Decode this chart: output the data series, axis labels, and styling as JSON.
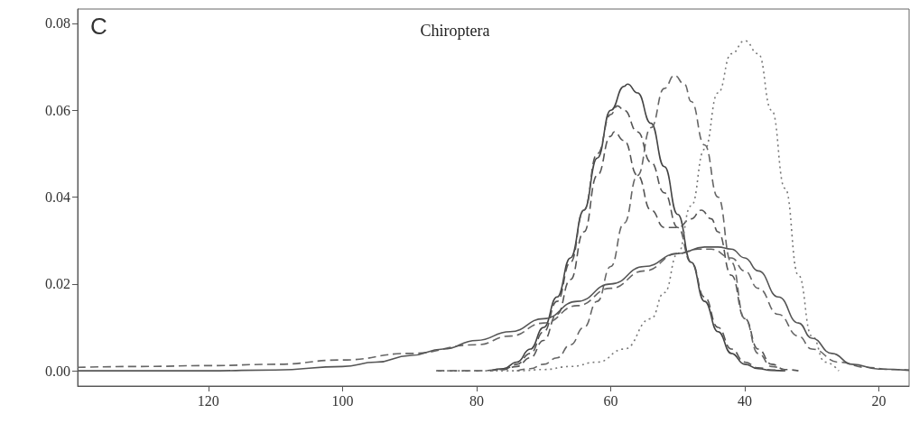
{
  "chart_data": {
    "type": "line",
    "title": "Chiroptera",
    "annotations": [
      "C"
    ],
    "xlim": [
      139.5,
      15.5
    ],
    "xticks": [
      120,
      100,
      80,
      60,
      40,
      20
    ],
    "ylim": [
      -0.0035,
      0.0833
    ],
    "yticks": [
      {
        "value": 0,
        "label": "0.00"
      },
      0.02,
      0.04,
      0.06,
      0.08
    ],
    "marker": "none",
    "series": [
      {
        "color": "#444444",
        "line_style": "solid",
        "x": [
          78,
          76,
          74,
          72,
          70,
          68,
          66,
          64,
          62,
          60,
          58,
          57.5,
          56,
          54,
          52,
          50,
          48,
          46,
          44,
          42,
          40,
          38,
          36,
          34
        ],
        "values": [
          0,
          0.0005,
          0.002,
          0.005,
          0.01,
          0.017,
          0.026,
          0.037,
          0.049,
          0.06,
          0.0655,
          0.066,
          0.064,
          0.057,
          0.047,
          0.036,
          0.025,
          0.016,
          0.009,
          0.004,
          0.0015,
          0.0005,
          0.0001,
          0
        ]
      },
      {
        "color": "#555555",
        "line_style": "dashed",
        "x": [
          78,
          76,
          74,
          72,
          70,
          68,
          66,
          64,
          62,
          60,
          59,
          58,
          56,
          54,
          52,
          50,
          48,
          46,
          44,
          42,
          40,
          38,
          36,
          34
        ],
        "values": [
          0,
          0.0003,
          0.0015,
          0.004,
          0.009,
          0.016,
          0.025,
          0.037,
          0.05,
          0.059,
          0.061,
          0.06,
          0.055,
          0.048,
          0.041,
          0.033,
          0.025,
          0.017,
          0.01,
          0.005,
          0.002,
          0.0007,
          0.0002,
          0
        ]
      },
      {
        "color": "#555555",
        "line_style": "dashed",
        "x": [
          86,
          80,
          76,
          74,
          72,
          70,
          68,
          66,
          64,
          62,
          60,
          59.5,
          58,
          56,
          54,
          52,
          50,
          48,
          46.5,
          45,
          44,
          42,
          40,
          38,
          36,
          34,
          32
        ],
        "values": [
          0,
          0,
          0.0003,
          0.001,
          0.003,
          0.007,
          0.013,
          0.021,
          0.032,
          0.045,
          0.054,
          0.055,
          0.053,
          0.045,
          0.037,
          0.033,
          0.033,
          0.035,
          0.037,
          0.035,
          0.032,
          0.022,
          0.012,
          0.005,
          0.0015,
          0.0003,
          0
        ]
      },
      {
        "color": "#666666",
        "line_style": "dashed",
        "x": [
          74,
          72,
          70,
          68,
          66,
          64,
          62,
          60,
          58,
          56,
          54,
          52,
          50.5,
          49,
          48,
          46,
          44,
          42,
          40,
          38,
          36,
          34
        ],
        "values": [
          0,
          0.0005,
          0.0015,
          0.003,
          0.006,
          0.01,
          0.016,
          0.024,
          0.034,
          0.045,
          0.056,
          0.065,
          0.068,
          0.066,
          0.062,
          0.052,
          0.04,
          0.025,
          0.012,
          0.004,
          0.001,
          0
        ]
      },
      {
        "color": "#777777",
        "line_style": "dotted",
        "x": [
          86,
          80,
          74,
          70,
          66,
          62,
          58,
          54,
          52,
          50,
          48,
          46,
          44,
          42,
          40,
          38,
          36,
          34,
          32,
          30,
          28,
          26
        ],
        "values": [
          0,
          0,
          0,
          0.0003,
          0.001,
          0.002,
          0.005,
          0.012,
          0.018,
          0.027,
          0.038,
          0.051,
          0.064,
          0.073,
          0.076,
          0.073,
          0.06,
          0.042,
          0.022,
          0.008,
          0.002,
          0
        ]
      },
      {
        "color": "#666666",
        "line_style": "dashed",
        "x": [
          139.5,
          130,
          120,
          110,
          100,
          90,
          80,
          75,
          70,
          65,
          60,
          55,
          50,
          47,
          45,
          42,
          40,
          38,
          35,
          32,
          30,
          26,
          22,
          18,
          15.5
        ],
        "values": [
          0.0008,
          0.001,
          0.0012,
          0.0015,
          0.0025,
          0.004,
          0.006,
          0.008,
          0.011,
          0.015,
          0.019,
          0.023,
          0.027,
          0.028,
          0.028,
          0.026,
          0.023,
          0.019,
          0.013,
          0.008,
          0.005,
          0.002,
          0.0008,
          0.0003,
          0.0002
        ]
      },
      {
        "color": "#555555",
        "line_style": "solid",
        "x": [
          139.5,
          130,
          120,
          110,
          100,
          95,
          90,
          85,
          80,
          75,
          70,
          65,
          60,
          55,
          50,
          46,
          44,
          42,
          40,
          38,
          35,
          32,
          30,
          27,
          24,
          20,
          15.5
        ],
        "values": [
          0,
          0,
          0,
          0.0002,
          0.001,
          0.002,
          0.0035,
          0.005,
          0.007,
          0.009,
          0.012,
          0.016,
          0.02,
          0.024,
          0.027,
          0.0285,
          0.0285,
          0.028,
          0.026,
          0.023,
          0.017,
          0.011,
          0.0075,
          0.004,
          0.0015,
          0.0004,
          0.0001
        ]
      }
    ]
  }
}
